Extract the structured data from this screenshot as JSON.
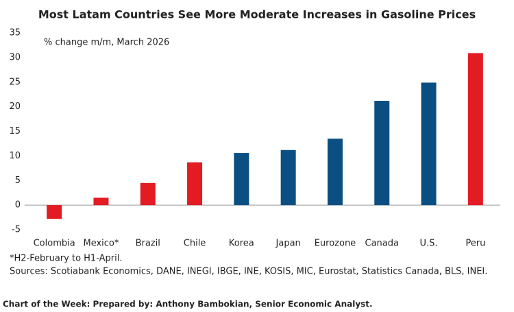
{
  "chart_data": {
    "type": "bar",
    "title": "Most Latam Countries See More Moderate Increases in Gasoline Prices",
    "subtitle": "% change m/m, March 2026",
    "categories": [
      "Colombia",
      "Mexico*",
      "Brazil",
      "Chile",
      "Korea",
      "Japan",
      "Eurozone",
      "Canada",
      "U.S.",
      "Peru"
    ],
    "values": [
      -2.8,
      1.5,
      4.5,
      8.7,
      10.6,
      11.2,
      13.5,
      21.2,
      24.9,
      30.9
    ],
    "colors": [
      "#e31b23",
      "#e31b23",
      "#e31b23",
      "#e31b23",
      "#0b4f82",
      "#0b4f82",
      "#0b4f82",
      "#0b4f82",
      "#0b4f82",
      "#e31b23"
    ],
    "ylim": [
      -5,
      35
    ],
    "yticks": [
      -5,
      0,
      5,
      10,
      15,
      20,
      25,
      30,
      35
    ],
    "grid": false,
    "notes": [
      "*H2-February to H1-April.",
      "Sources: Scotiabank Economics, DANE, INEGI, IBGE, INE, KOSIS, MIC, Eurostat, Statistics Canada, BLS, INEI."
    ],
    "footer": "Chart of the Week:  Prepared by: Anthony Bambokian, Senior Economic Analyst."
  }
}
